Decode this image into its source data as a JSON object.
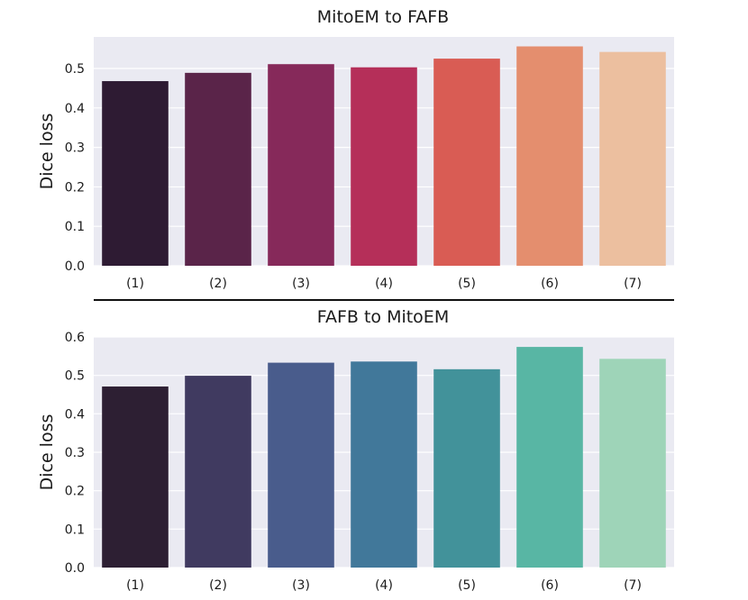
{
  "chart_data": [
    {
      "type": "bar",
      "title": "MitoEM to FAFB",
      "xlabel": "",
      "ylabel": "Dice loss",
      "categories": [
        "(1)",
        "(2)",
        "(3)",
        "(4)",
        "(5)",
        "(6)",
        "(7)"
      ],
      "values": [
        0.468,
        0.489,
        0.511,
        0.503,
        0.525,
        0.556,
        0.542
      ],
      "ylim": [
        0,
        0.58
      ],
      "yticks": [
        "0.0",
        "0.1",
        "0.2",
        "0.3",
        "0.4",
        "0.5"
      ],
      "colors": [
        "#2e1b33",
        "#5a2449",
        "#86295a",
        "#b52f59",
        "#d95c54",
        "#e48e6e",
        "#ecbf9f"
      ],
      "background": "#eaeaf2",
      "grid": true
    },
    {
      "type": "bar",
      "title": "FAFB to MitoEM",
      "xlabel": "",
      "ylabel": "Dice loss",
      "categories": [
        "(1)",
        "(2)",
        "(3)",
        "(4)",
        "(5)",
        "(6)",
        "(7)"
      ],
      "values": [
        0.471,
        0.499,
        0.533,
        0.536,
        0.516,
        0.574,
        0.543
      ],
      "ylim": [
        0,
        0.6
      ],
      "yticks": [
        "0.0",
        "0.1",
        "0.2",
        "0.3",
        "0.4",
        "0.5",
        "0.6"
      ],
      "colors": [
        "#2d1f33",
        "#403a60",
        "#495c8c",
        "#41789a",
        "#42929a",
        "#58b6a4",
        "#9ed4b8"
      ],
      "background": "#eaeaf2",
      "grid": true
    }
  ]
}
